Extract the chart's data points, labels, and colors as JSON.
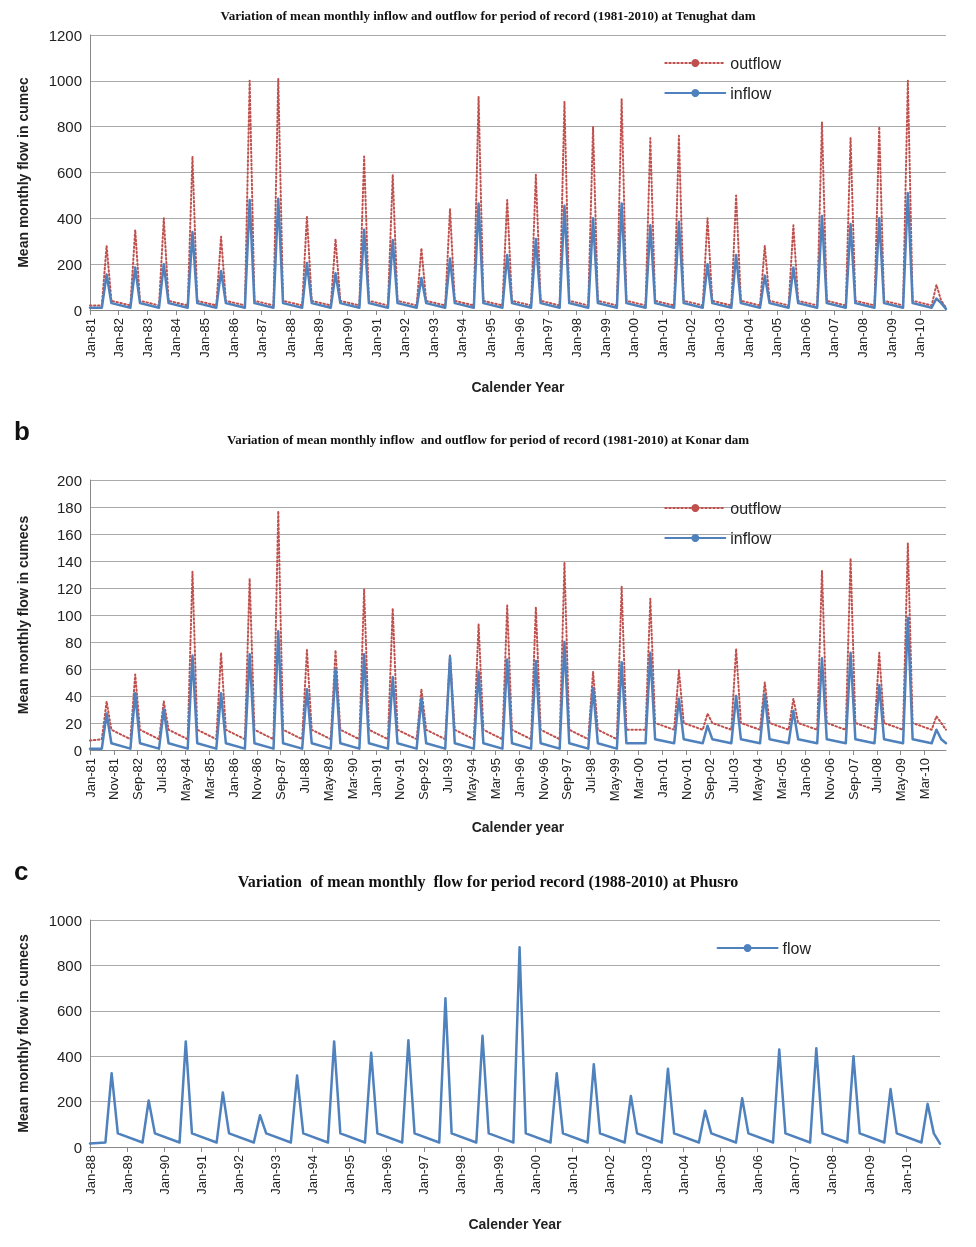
{
  "chart_data": [
    {
      "type": "line",
      "title": "Variation of mean monthly inflow and outflow for period of record (1981-2010) at Tenughat dam",
      "xlabel": "Calender Year",
      "ylabel": "Mean monthly flow in cumec",
      "x": [
        "1981-01",
        "1981-06",
        "1981-08",
        "1981-10",
        "1982-06",
        "1982-08",
        "1982-10",
        "1983-06",
        "1983-08",
        "1983-10",
        "1984-06",
        "1984-08",
        "1984-10",
        "1985-06",
        "1985-08",
        "1985-10",
        "1986-06",
        "1986-08",
        "1986-10",
        "1987-06",
        "1987-08",
        "1987-10",
        "1988-06",
        "1988-08",
        "1988-10",
        "1989-06",
        "1989-08",
        "1989-10",
        "1990-06",
        "1990-08",
        "1990-10",
        "1991-06",
        "1991-08",
        "1991-10",
        "1992-06",
        "1992-08",
        "1992-10",
        "1993-06",
        "1993-08",
        "1993-10",
        "1994-06",
        "1994-08",
        "1994-10",
        "1995-06",
        "1995-08",
        "1995-10",
        "1996-06",
        "1996-08",
        "1996-10",
        "1997-06",
        "1997-08",
        "1997-10",
        "1998-06",
        "1998-08",
        "1998-10",
        "1999-06",
        "1999-08",
        "1999-10",
        "2000-06",
        "2000-08",
        "2000-10",
        "2001-06",
        "2001-08",
        "2001-10",
        "2002-06",
        "2002-08",
        "2002-10",
        "2003-06",
        "2003-08",
        "2003-10",
        "2004-06",
        "2004-08",
        "2004-10",
        "2005-06",
        "2005-08",
        "2005-10",
        "2006-06",
        "2006-08",
        "2006-10",
        "2007-06",
        "2007-08",
        "2007-10",
        "2008-06",
        "2008-08",
        "2008-10",
        "2009-06",
        "2009-08",
        "2009-10",
        "2010-06",
        "2010-08",
        "2010-10",
        "2010-12"
      ],
      "series": [
        {
          "name": "outflow",
          "color": "#c0504d",
          "line_style": "dotted",
          "values": [
            20,
            20,
            280,
            40,
            20,
            350,
            40,
            20,
            400,
            40,
            20,
            670,
            40,
            20,
            320,
            40,
            20,
            1000,
            40,
            20,
            1010,
            40,
            20,
            410,
            40,
            20,
            310,
            40,
            20,
            670,
            40,
            20,
            590,
            40,
            20,
            270,
            40,
            20,
            440,
            40,
            20,
            930,
            40,
            20,
            480,
            40,
            20,
            590,
            40,
            20,
            910,
            40,
            20,
            800,
            40,
            20,
            920,
            40,
            20,
            750,
            40,
            20,
            760,
            40,
            20,
            400,
            40,
            20,
            500,
            40,
            20,
            280,
            40,
            20,
            370,
            40,
            20,
            820,
            40,
            20,
            750,
            40,
            20,
            800,
            40,
            20,
            1000,
            40,
            20,
            110,
            40,
            10
          ]
        },
        {
          "name": "inflow",
          "color": "#4f81bd",
          "line_style": "solid",
          "values": [
            10,
            10,
            155,
            30,
            10,
            185,
            30,
            10,
            200,
            30,
            10,
            340,
            30,
            10,
            170,
            30,
            10,
            480,
            30,
            10,
            485,
            30,
            10,
            205,
            30,
            10,
            160,
            30,
            10,
            350,
            30,
            10,
            305,
            30,
            10,
            140,
            30,
            10,
            225,
            30,
            10,
            465,
            30,
            10,
            240,
            30,
            10,
            310,
            30,
            10,
            455,
            30,
            10,
            400,
            30,
            10,
            465,
            30,
            10,
            370,
            30,
            10,
            385,
            30,
            10,
            200,
            30,
            10,
            240,
            30,
            10,
            150,
            30,
            10,
            185,
            30,
            10,
            410,
            30,
            10,
            375,
            30,
            10,
            400,
            30,
            10,
            510,
            30,
            10,
            50,
            30,
            5
          ]
        }
      ],
      "xlim": [
        "1981-01",
        "2010-12"
      ],
      "xticks": [
        {
          "value": "1981-01",
          "label": "Jan-81"
        },
        {
          "value": "1982-01",
          "label": "Jan-82"
        },
        {
          "value": "1983-01",
          "label": "Jan-83"
        },
        {
          "value": "1984-01",
          "label": "Jan-84"
        },
        {
          "value": "1985-01",
          "label": "Jan-85"
        },
        {
          "value": "1986-01",
          "label": "Jan-86"
        },
        {
          "value": "1987-01",
          "label": "Jan-87"
        },
        {
          "value": "1988-01",
          "label": "Jan-88"
        },
        {
          "value": "1989-01",
          "label": "Jan-89"
        },
        {
          "value": "1990-01",
          "label": "Jan-90"
        },
        {
          "value": "1991-01",
          "label": "Jan-91"
        },
        {
          "value": "1992-01",
          "label": "Jan-92"
        },
        {
          "value": "1993-01",
          "label": "Jan-93"
        },
        {
          "value": "1994-01",
          "label": "Jan-94"
        },
        {
          "value": "1995-01",
          "label": "Jan-95"
        },
        {
          "value": "1996-01",
          "label": "Jan-96"
        },
        {
          "value": "1997-01",
          "label": "Jan-97"
        },
        {
          "value": "1998-01",
          "label": "Jan-98"
        },
        {
          "value": "1999-01",
          "label": "Jan-99"
        },
        {
          "value": "2000-01",
          "label": "Jan-00"
        },
        {
          "value": "2001-01",
          "label": "Jan-01"
        },
        {
          "value": "2002-01",
          "label": "Jan-02"
        },
        {
          "value": "2003-01",
          "label": "Jan-03"
        },
        {
          "value": "2004-01",
          "label": "Jan-04"
        },
        {
          "value": "2005-01",
          "label": "Jan-05"
        },
        {
          "value": "2006-01",
          "label": "Jan-06"
        },
        {
          "value": "2007-01",
          "label": "Jan-07"
        },
        {
          "value": "2008-01",
          "label": "Jan-08"
        },
        {
          "value": "2009-01",
          "label": "Jan-09"
        },
        {
          "value": "2010-01",
          "label": "Jan-10"
        }
      ],
      "ylim": [
        0,
        1200
      ],
      "yticks": [
        0,
        200,
        400,
        600,
        800,
        1000,
        1200
      ],
      "grid": "y",
      "legend": "top right",
      "marker": "none"
    },
    {
      "type": "line",
      "title": "Variation of mean monthly inflow  and outflow for period of record (1981-2010) at Konar dam",
      "xlabel": "Calender year",
      "ylabel": "Mean monthly flow in cumecs",
      "annotations": [
        "b"
      ],
      "x": [
        "1981-01",
        "1981-06",
        "1981-08",
        "1981-10",
        "1982-06",
        "1982-08",
        "1982-10",
        "1983-06",
        "1983-08",
        "1983-10",
        "1984-06",
        "1984-08",
        "1984-10",
        "1985-06",
        "1985-08",
        "1985-10",
        "1986-06",
        "1986-08",
        "1986-10",
        "1987-06",
        "1987-08",
        "1987-10",
        "1988-06",
        "1988-08",
        "1988-10",
        "1989-06",
        "1989-08",
        "1989-10",
        "1990-06",
        "1990-08",
        "1990-10",
        "1991-06",
        "1991-08",
        "1991-10",
        "1992-06",
        "1992-08",
        "1992-10",
        "1993-06",
        "1993-08",
        "1993-10",
        "1994-06",
        "1994-08",
        "1994-10",
        "1995-06",
        "1995-08",
        "1995-10",
        "1996-06",
        "1996-08",
        "1996-10",
        "1997-06",
        "1997-08",
        "1997-10",
        "1998-06",
        "1998-08",
        "1998-10",
        "1999-06",
        "1999-08",
        "1999-10",
        "2000-06",
        "2000-08",
        "2000-10",
        "2001-06",
        "2001-08",
        "2001-10",
        "2002-06",
        "2002-08",
        "2002-10",
        "2003-06",
        "2003-08",
        "2003-10",
        "2004-06",
        "2004-08",
        "2004-10",
        "2005-06",
        "2005-08",
        "2005-10",
        "2006-06",
        "2006-08",
        "2006-10",
        "2007-06",
        "2007-08",
        "2007-10",
        "2008-06",
        "2008-08",
        "2008-10",
        "2009-06",
        "2009-08",
        "2009-10",
        "2010-06",
        "2010-08",
        "2010-10",
        "2010-12"
      ],
      "series": [
        {
          "name": "outflow",
          "color": "#c0504d",
          "line_style": "dotted",
          "values": [
            7,
            8,
            36,
            15,
            8,
            56,
            15,
            8,
            36,
            15,
            8,
            132,
            15,
            8,
            72,
            15,
            8,
            127,
            15,
            8,
            177,
            15,
            8,
            74,
            15,
            8,
            74,
            15,
            8,
            119,
            15,
            8,
            105,
            15,
            8,
            45,
            15,
            8,
            70,
            15,
            8,
            93,
            15,
            8,
            107,
            15,
            8,
            106,
            15,
            8,
            139,
            15,
            8,
            58,
            15,
            8,
            121,
            15,
            15,
            112,
            20,
            15,
            59,
            20,
            15,
            27,
            20,
            15,
            75,
            20,
            15,
            50,
            20,
            15,
            38,
            20,
            15,
            133,
            20,
            15,
            142,
            20,
            15,
            72,
            20,
            15,
            153,
            20,
            15,
            25,
            20,
            15
          ]
        },
        {
          "name": "inflow",
          "color": "#4f81bd",
          "line_style": "solid",
          "values": [
            1,
            1,
            27,
            5,
            1,
            42,
            5,
            1,
            30,
            5,
            1,
            70,
            5,
            1,
            42,
            5,
            1,
            71,
            5,
            1,
            88,
            5,
            1,
            45,
            5,
            1,
            60,
            5,
            1,
            71,
            5,
            1,
            54,
            5,
            1,
            38,
            5,
            1,
            69,
            5,
            1,
            58,
            5,
            1,
            67,
            5,
            1,
            66,
            5,
            1,
            80,
            5,
            1,
            46,
            5,
            1,
            65,
            5,
            5,
            72,
            8,
            5,
            38,
            8,
            5,
            18,
            8,
            5,
            40,
            8,
            5,
            41,
            8,
            5,
            29,
            8,
            5,
            68,
            8,
            5,
            72,
            8,
            5,
            48,
            8,
            5,
            98,
            8,
            5,
            15,
            8,
            5
          ]
        }
      ],
      "xlim": [
        "1981-01",
        "2010-12"
      ],
      "xticks": [
        {
          "value": "1981-01",
          "label": "Jan-81"
        },
        {
          "value": "1981-11",
          "label": "Nov-81"
        },
        {
          "value": "1982-09",
          "label": "Sep-82"
        },
        {
          "value": "1983-07",
          "label": "Jul-83"
        },
        {
          "value": "1984-05",
          "label": "May-84"
        },
        {
          "value": "1985-03",
          "label": "Mar-85"
        },
        {
          "value": "1986-01",
          "label": "Jan-86"
        },
        {
          "value": "1986-11",
          "label": "Nov-86"
        },
        {
          "value": "1987-09",
          "label": "Sep-87"
        },
        {
          "value": "1988-07",
          "label": "Jul-88"
        },
        {
          "value": "1989-05",
          "label": "May-89"
        },
        {
          "value": "1990-03",
          "label": "Mar-90"
        },
        {
          "value": "1991-01",
          "label": "Jan-91"
        },
        {
          "value": "1991-11",
          "label": "Nov-91"
        },
        {
          "value": "1992-09",
          "label": "Sep-92"
        },
        {
          "value": "1993-07",
          "label": "Jul-93"
        },
        {
          "value": "1994-05",
          "label": "May-94"
        },
        {
          "value": "1995-03",
          "label": "Mar-95"
        },
        {
          "value": "1996-01",
          "label": "Jan-96"
        },
        {
          "value": "1996-11",
          "label": "Nov-96"
        },
        {
          "value": "1997-09",
          "label": "Sep-97"
        },
        {
          "value": "1998-07",
          "label": "Jul-98"
        },
        {
          "value": "1999-05",
          "label": "May-99"
        },
        {
          "value": "2000-03",
          "label": "Mar-00"
        },
        {
          "value": "2001-01",
          "label": "Jan-01"
        },
        {
          "value": "2001-11",
          "label": "Nov-01"
        },
        {
          "value": "2002-09",
          "label": "Sep-02"
        },
        {
          "value": "2003-07",
          "label": "Jul-03"
        },
        {
          "value": "2004-05",
          "label": "May-04"
        },
        {
          "value": "2005-03",
          "label": "Mar-05"
        },
        {
          "value": "2006-01",
          "label": "Jan-06"
        },
        {
          "value": "2006-11",
          "label": "Nov-06"
        },
        {
          "value": "2007-09",
          "label": "Sep-07"
        },
        {
          "value": "2008-07",
          "label": "Jul-08"
        },
        {
          "value": "2009-05",
          "label": "May-09"
        },
        {
          "value": "2010-03",
          "label": "Mar-10"
        }
      ],
      "ylim": [
        0,
        200
      ],
      "yticks": [
        0,
        20,
        40,
        60,
        80,
        100,
        120,
        140,
        160,
        180,
        200
      ],
      "grid": "y",
      "legend": "top right",
      "marker": "none"
    },
    {
      "type": "line",
      "title": "Variation  of mean monthly  flow for period record (1988-2010) at Phusro",
      "xlabel": "Calender Year",
      "ylabel": "Mean monthly flow in cumecs",
      "annotations": [
        "c"
      ],
      "x": [
        "1988-01",
        "1988-06",
        "1988-08",
        "1988-10",
        "1989-06",
        "1989-08",
        "1989-10",
        "1990-06",
        "1990-08",
        "1990-10",
        "1991-06",
        "1991-08",
        "1991-10",
        "1992-06",
        "1992-08",
        "1992-10",
        "1993-06",
        "1993-08",
        "1993-10",
        "1994-06",
        "1994-08",
        "1994-10",
        "1995-06",
        "1995-08",
        "1995-10",
        "1996-06",
        "1996-08",
        "1996-10",
        "1997-06",
        "1997-08",
        "1997-10",
        "1998-06",
        "1998-08",
        "1998-10",
        "1999-06",
        "1999-08",
        "1999-10",
        "2000-06",
        "2000-08",
        "2000-10",
        "2001-06",
        "2001-08",
        "2001-10",
        "2002-06",
        "2002-08",
        "2002-10",
        "2003-06",
        "2003-08",
        "2003-10",
        "2004-06",
        "2004-08",
        "2004-10",
        "2005-06",
        "2005-08",
        "2005-10",
        "2006-06",
        "2006-08",
        "2006-10",
        "2007-06",
        "2007-08",
        "2007-10",
        "2008-06",
        "2008-08",
        "2008-10",
        "2009-06",
        "2009-08",
        "2009-10",
        "2010-06",
        "2010-08",
        "2010-10",
        "2010-12"
      ],
      "series": [
        {
          "name": "flow",
          "color": "#4f81bd",
          "line_style": "solid",
          "values": [
            15,
            20,
            325,
            60,
            20,
            205,
            60,
            20,
            465,
            60,
            20,
            240,
            60,
            20,
            140,
            60,
            20,
            315,
            60,
            20,
            465,
            60,
            20,
            415,
            60,
            20,
            470,
            60,
            20,
            655,
            60,
            20,
            490,
            60,
            20,
            880,
            60,
            20,
            325,
            60,
            20,
            365,
            60,
            20,
            225,
            60,
            20,
            345,
            60,
            20,
            160,
            60,
            20,
            215,
            60,
            20,
            430,
            60,
            20,
            435,
            60,
            20,
            400,
            60,
            20,
            255,
            60,
            20,
            190,
            60,
            15
          ]
        }
      ],
      "xlim": [
        "1988-01",
        "2010-12"
      ],
      "xticks": [
        {
          "value": "1988-01",
          "label": "Jan-88"
        },
        {
          "value": "1989-01",
          "label": "Jan-89"
        },
        {
          "value": "1990-01",
          "label": "Jan-90"
        },
        {
          "value": "1991-01",
          "label": "Jan-91"
        },
        {
          "value": "1992-01",
          "label": "Jan-92"
        },
        {
          "value": "1993-01",
          "label": "Jan-93"
        },
        {
          "value": "1994-01",
          "label": "Jan-94"
        },
        {
          "value": "1995-01",
          "label": "Jan-95"
        },
        {
          "value": "1996-01",
          "label": "Jan-96"
        },
        {
          "value": "1997-01",
          "label": "Jan-97"
        },
        {
          "value": "1998-01",
          "label": "Jan-98"
        },
        {
          "value": "1999-01",
          "label": "Jan-99"
        },
        {
          "value": "2000-01",
          "label": "Jan-00"
        },
        {
          "value": "2001-01",
          "label": "Jan-01"
        },
        {
          "value": "2002-01",
          "label": "Jan-02"
        },
        {
          "value": "2003-01",
          "label": "Jan-03"
        },
        {
          "value": "2004-01",
          "label": "Jan-04"
        },
        {
          "value": "2005-01",
          "label": "Jan-05"
        },
        {
          "value": "2006-01",
          "label": "Jan-06"
        },
        {
          "value": "2007-01",
          "label": "Jan-07"
        },
        {
          "value": "2008-01",
          "label": "Jan-08"
        },
        {
          "value": "2009-01",
          "label": "Jan-09"
        },
        {
          "value": "2010-01",
          "label": "Jan-10"
        }
      ],
      "ylim": [
        0,
        1000
      ],
      "yticks": [
        0,
        200,
        400,
        600,
        800,
        1000
      ],
      "grid": "y",
      "legend": "top right",
      "marker": "none"
    }
  ]
}
